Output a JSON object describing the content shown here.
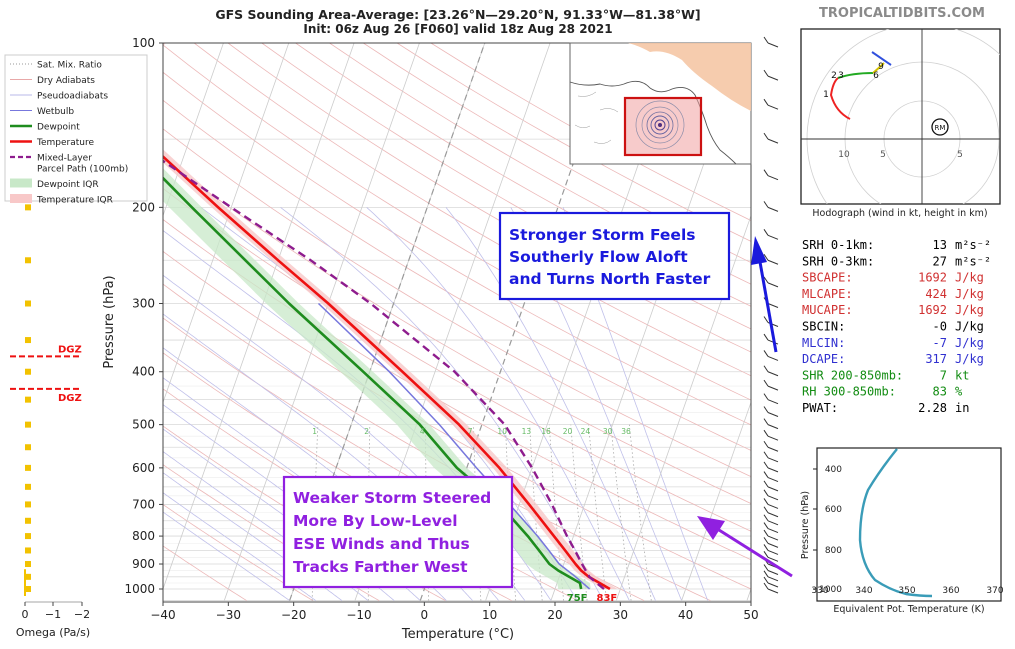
{
  "header": {
    "title": "GFS Sounding Area-Average: [23.26°N—29.20°N, 91.33°W—81.38°W]",
    "subtitle": "Init: 06z Aug 26 [F060] valid 18z Aug 28 2021",
    "site": "TROPICALTIDBITS.COM"
  },
  "legend": [
    {
      "label": "Sat. Mix. Ratio",
      "color": "#999999",
      "style": "dotted"
    },
    {
      "label": "Dry Adiabats",
      "color": "#e8a8a8",
      "style": "solid"
    },
    {
      "label": "Pseudoadiabats",
      "color": "#b8b8e8",
      "style": "solid"
    },
    {
      "label": "Wetbulb",
      "color": "#7777dd",
      "style": "solid"
    },
    {
      "label": "Dewpoint",
      "color": "#1e8c1e",
      "style": "thick"
    },
    {
      "label": "Temperature",
      "color": "#ee1111",
      "style": "thick"
    },
    {
      "label": "Mixed-Layer",
      "label2": "Parcel Path (100mb)",
      "color": "#8e1c8e",
      "style": "dashed"
    },
    {
      "label": "Dewpoint IQR",
      "color": "#c8e8c8",
      "style": "patch"
    },
    {
      "label": "Temperature IQR",
      "color": "#f8c8c8",
      "style": "patch"
    }
  ],
  "omega": {
    "xlabel": "Omega (Pa/s)",
    "ticks": [
      "0",
      "−1",
      "−2"
    ],
    "dgz_label": "DGZ",
    "dgz_pressures": [
      375,
      430
    ],
    "pressures": [
      200,
      250,
      300,
      350,
      400,
      450,
      500,
      550,
      600,
      650,
      700,
      750,
      800,
      850,
      900,
      950,
      1000
    ],
    "color": "#f2c200"
  },
  "chart_data": {
    "type": "line",
    "title": "GFS Sounding Area-Average: [23.26°N—29.20°N, 91.33°W—81.38°W]",
    "xlabel": "Temperature (°C)",
    "ylabel": "Pressure (hPa)",
    "xlim": [
      -40,
      50
    ],
    "ylim": [
      1050,
      100
    ],
    "yscale": "log",
    "skew": true,
    "xticks": [
      -40,
      -30,
      -20,
      -10,
      0,
      10,
      20,
      30,
      40,
      50
    ],
    "yticks": [
      100,
      200,
      300,
      400,
      500,
      600,
      700,
      800,
      900,
      1000
    ],
    "isotherm_labels": [
      "−40",
      "−30",
      "−20",
      "−10",
      "0",
      "10",
      "20",
      "30",
      "40",
      "50"
    ],
    "mixing_ratio_labels": [
      "1",
      "2",
      "4",
      "7",
      "10",
      "13",
      "16",
      "20",
      "24",
      "30",
      "36"
    ],
    "surface_labels": {
      "dewpoint": "75F",
      "temperature": "83F"
    },
    "series": [
      {
        "name": "Temperature",
        "color": "#ee1111",
        "points": [
          [
            1000,
            28.4
          ],
          [
            975,
            26.5
          ],
          [
            950,
            24.5
          ],
          [
            925,
            23
          ],
          [
            900,
            21.8
          ],
          [
            850,
            19.5
          ],
          [
            800,
            17
          ],
          [
            700,
            11.5
          ],
          [
            600,
            5
          ],
          [
            500,
            -3.5
          ],
          [
            400,
            -15
          ],
          [
            300,
            -30
          ],
          [
            250,
            -40
          ],
          [
            200,
            -52
          ],
          [
            150,
            -67
          ],
          [
            140,
            -73
          ],
          [
            120,
            -74
          ],
          [
            100,
            -70
          ]
        ]
      },
      {
        "name": "Dewpoint",
        "color": "#1e8c1e",
        "points": [
          [
            1000,
            24
          ],
          [
            975,
            23.5
          ],
          [
            950,
            21.5
          ],
          [
            925,
            19.5
          ],
          [
            900,
            17.8
          ],
          [
            850,
            15.5
          ],
          [
            800,
            13
          ],
          [
            700,
            7
          ],
          [
            600,
            -1.5
          ],
          [
            500,
            -9.5
          ],
          [
            400,
            -21
          ],
          [
            300,
            -36
          ],
          [
            250,
            -45
          ],
          [
            200,
            -56
          ],
          [
            150,
            -70
          ],
          [
            140,
            -75
          ],
          [
            120,
            -80
          ],
          [
            100,
            -83
          ]
        ]
      },
      {
        "name": "Wetbulb",
        "color": "#7777dd",
        "points": [
          [
            1000,
            25.3
          ],
          [
            950,
            22.5
          ],
          [
            900,
            19.3
          ],
          [
            850,
            17
          ],
          [
            800,
            14.5
          ],
          [
            700,
            8.5
          ],
          [
            600,
            1.5
          ],
          [
            500,
            -6.5
          ],
          [
            400,
            -17
          ],
          [
            300,
            -31.5
          ]
        ]
      },
      {
        "name": "Mixed-Layer Parcel Path (100mb)",
        "color": "#8e1c8e",
        "points": [
          [
            1000,
            27.5
          ],
          [
            950,
            24.6
          ],
          [
            900,
            22.8
          ],
          [
            850,
            21
          ],
          [
            800,
            19
          ],
          [
            700,
            15
          ],
          [
            600,
            10
          ],
          [
            500,
            3.5
          ],
          [
            400,
            -7
          ],
          [
            300,
            -23.5
          ],
          [
            250,
            -35
          ],
          [
            200,
            -50
          ],
          [
            150,
            -69
          ],
          [
            120,
            -82
          ],
          [
            100,
            -92
          ]
        ]
      }
    ]
  },
  "map_inset": {},
  "hodograph": {
    "caption": "Hodograph (wind in kt, height in km)",
    "ring_labels": [
      "10",
      "5",
      "5"
    ],
    "height_labels": [
      "1",
      "2",
      "3",
      "6",
      "9"
    ],
    "rm_label": "RM"
  },
  "stats": [
    {
      "label": "SRH 0-1km:",
      "value": "13",
      "unit": "m²s⁻²",
      "color": "#000000"
    },
    {
      "label": "SRH 0-3km:",
      "value": "27",
      "unit": "m²s⁻²",
      "color": "#000000"
    },
    {
      "label": "SBCAPE:",
      "value": "1692",
      "unit": "J/kg",
      "color": "#d03030"
    },
    {
      "label": "MLCAPE:",
      "value": "424",
      "unit": "J/kg",
      "color": "#d03030"
    },
    {
      "label": "MUCAPE:",
      "value": "1692",
      "unit": "J/kg",
      "color": "#d03030"
    },
    {
      "label": "SBCIN:",
      "value": "-0",
      "unit": "J/kg",
      "color": "#000000"
    },
    {
      "label": "MLCIN:",
      "value": "-7",
      "unit": "J/kg",
      "color": "#3030d0"
    },
    {
      "label": "DCAPE:",
      "value": "317",
      "unit": "J/kg",
      "color": "#3030d0"
    },
    {
      "label": "SHR 200-850mb:",
      "value": "7",
      "unit": "kt",
      "color": "#138c13"
    },
    {
      "label": "RH 300-850mb:",
      "value": "83",
      "unit": "%",
      "color": "#138c13"
    },
    {
      "label": "PWAT:",
      "value": "2.28",
      "unit": "in",
      "color": "#000000"
    }
  ],
  "theta_e": {
    "xlabel": "Equivalent Pot. Temperature (K)",
    "ylabel": "Pressure (hPa)",
    "xticks": [
      "330",
      "340",
      "350",
      "360",
      "370"
    ],
    "yticks": [
      "400",
      "600",
      "800",
      "1000"
    ]
  },
  "annotations": {
    "strong": {
      "line1": "Stronger Storm Feels",
      "line2": "Southerly Flow Aloft",
      "line3": "and Turns North Faster",
      "color": "#1a1add"
    },
    "weak": {
      "line1": "Weaker Storm Steered",
      "line2": "More By Low-Level",
      "line3": "ESE Winds and Thus",
      "line4": "Tracks Farther West",
      "color": "#9020e0"
    }
  }
}
